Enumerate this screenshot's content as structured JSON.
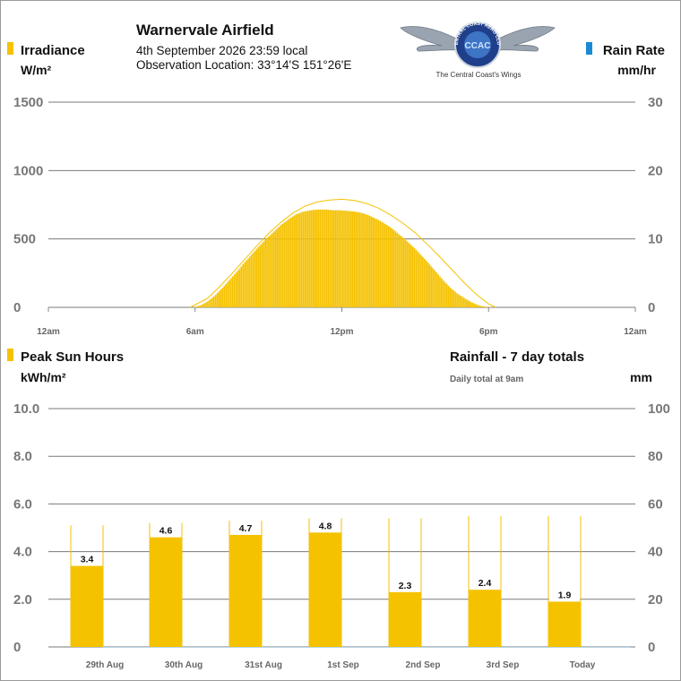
{
  "header": {
    "station": "Warnervale Airfield",
    "datetime": "4th September 2026  23:59 local",
    "location": "Observation Location: 33°14'S 151°26'E",
    "logo_ring_text": "CENTRAL COAST AERO CLUB",
    "logo_monogram": "CCAC",
    "logo_tagline": "The Central Coast's Wings"
  },
  "colors": {
    "irradiance": "#f5c200",
    "rain": "#1a8ad4",
    "clear_sky": "#f5c200",
    "grid": "#7a7a7a"
  },
  "top_chart": {
    "left_title": "Irradiance",
    "left_unit": "W/m²",
    "right_title": "Rain Rate",
    "right_unit": "mm/hr",
    "chart_data": {
      "type": "bar",
      "x_unit": "hour of day",
      "x_ticks": [
        0,
        6,
        12,
        18,
        24
      ],
      "x_tick_labels": [
        "12am",
        "6am",
        "12pm",
        "6pm",
        "12am"
      ],
      "y_left_ticks": [
        0,
        500,
        1000,
        1500
      ],
      "y_left_tick_labels": [
        "0",
        "500",
        "1000",
        "1500"
      ],
      "y_left_range": [
        0,
        1500
      ],
      "y_right_ticks": [
        0,
        10,
        20,
        30
      ],
      "y_right_tick_labels": [
        "0",
        "10",
        "20",
        "30"
      ],
      "y_right_range": [
        0,
        30
      ],
      "grid": true,
      "irradiance_x": [
        5.9,
        6.2,
        6.5,
        6.8,
        7.1,
        7.4,
        7.7,
        8.0,
        8.3,
        8.6,
        8.9,
        9.2,
        9.5,
        9.8,
        10.1,
        10.4,
        10.7,
        11.0,
        11.3,
        11.6,
        11.9,
        12.2,
        12.5,
        12.8,
        13.1,
        13.4,
        13.7,
        14.0,
        14.3,
        14.6,
        14.9,
        15.2,
        15.5,
        15.8,
        16.1,
        16.4,
        16.7,
        17.0,
        17.3,
        17.6,
        17.9,
        18.2
      ],
      "irradiance_values": [
        0,
        15,
        45,
        90,
        145,
        205,
        265,
        330,
        390,
        450,
        505,
        555,
        605,
        645,
        680,
        700,
        710,
        715,
        715,
        710,
        710,
        705,
        700,
        690,
        670,
        645,
        615,
        580,
        535,
        490,
        440,
        385,
        325,
        265,
        200,
        145,
        100,
        65,
        35,
        12,
        3,
        0
      ],
      "clear_sky_x": [
        5.8,
        6.5,
        7.0,
        7.5,
        8.0,
        8.5,
        9.0,
        9.5,
        10.0,
        10.5,
        11.0,
        11.5,
        12.0,
        12.5,
        13.0,
        13.5,
        14.0,
        14.5,
        15.0,
        15.5,
        16.0,
        16.5,
        17.0,
        17.5,
        18.0,
        18.3
      ],
      "clear_sky_values": [
        0,
        65,
        150,
        245,
        345,
        445,
        540,
        620,
        690,
        740,
        770,
        785,
        790,
        782,
        760,
        725,
        675,
        615,
        545,
        460,
        370,
        275,
        180,
        95,
        25,
        0
      ],
      "rain_rate_values": []
    }
  },
  "bottom_chart": {
    "left_title": "Peak Sun Hours",
    "left_unit": "kWh/m²",
    "right_title": "Rainfall - 7 day totals",
    "right_note": "Daily total at 9am",
    "right_unit": "mm",
    "chart_data": {
      "type": "bar",
      "categories": [
        "29th Aug",
        "30th Aug",
        "31st Aug",
        "1st Sep",
        "2nd Sep",
        "3rd Sep",
        "Today"
      ],
      "series": [
        {
          "values": [
            3.4,
            4.6,
            4.7,
            4.8,
            2.3,
            2.4,
            1.9
          ],
          "value_labels": [
            "3.4",
            "4.6",
            "4.7",
            "4.8",
            "2.3",
            "2.4",
            "1.9"
          ]
        }
      ],
      "clear_sky_values": [
        5.1,
        5.2,
        5.3,
        5.4,
        5.4,
        5.5,
        5.5
      ],
      "rainfall_mm": [
        0,
        0,
        0,
        0,
        0,
        0,
        0
      ],
      "y_left_ticks": [
        0,
        2,
        4,
        6,
        8,
        10
      ],
      "y_left_tick_labels": [
        "0",
        "2.0",
        "4.0",
        "6.0",
        "8.0",
        "10.0"
      ],
      "y_left_range": [
        0,
        10
      ],
      "y_right_ticks": [
        0,
        20,
        40,
        60,
        80,
        100
      ],
      "y_right_tick_labels": [
        "0",
        "20",
        "40",
        "60",
        "80",
        "100"
      ],
      "y_right_range": [
        0,
        100
      ],
      "grid": true
    }
  }
}
